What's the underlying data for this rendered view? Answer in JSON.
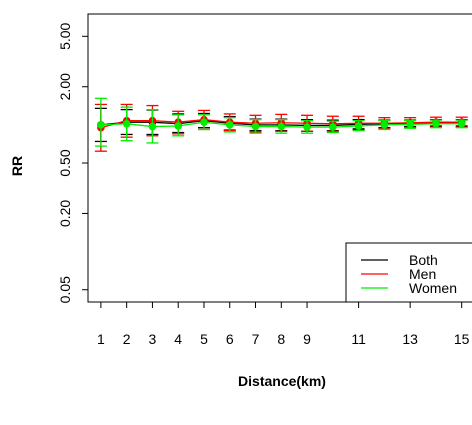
{
  "chart_data": {
    "type": "line",
    "title": "",
    "xlabel": "Distance(km)",
    "ylabel": "RR",
    "y_scale": "log",
    "ylim": [
      0.04,
      7.5
    ],
    "xlim": [
      0.5,
      15.4
    ],
    "x_ticks": [
      1,
      2,
      3,
      4,
      5,
      6,
      7,
      8,
      9,
      11,
      13,
      15
    ],
    "y_ticks": [
      0.05,
      0.2,
      0.5,
      2.0,
      5.0
    ],
    "y_tick_labels": [
      "0.05",
      "0.20",
      "0.50",
      "2.00",
      "5.00"
    ],
    "x": [
      1,
      2,
      3,
      4,
      5,
      6,
      7,
      8,
      9,
      10,
      11,
      12,
      13,
      14,
      15
    ],
    "legend_position": "bottom-right",
    "series": [
      {
        "name": "Both",
        "color": "#000000",
        "values": [
          1.0,
          1.05,
          1.05,
          1.02,
          1.08,
          1.03,
          1.0,
          1.0,
          0.99,
          0.99,
          1.01,
          1.02,
          1.03,
          1.04,
          1.04
        ],
        "lower": [
          0.74,
          0.84,
          0.84,
          0.87,
          0.95,
          0.91,
          0.9,
          0.9,
          0.89,
          0.9,
          0.93,
          0.95,
          0.97,
          0.98,
          0.98
        ],
        "upper": [
          1.35,
          1.32,
          1.31,
          1.22,
          1.23,
          1.16,
          1.11,
          1.11,
          1.1,
          1.09,
          1.1,
          1.09,
          1.09,
          1.1,
          1.1
        ]
      },
      {
        "name": "Men",
        "color": "#ff0000",
        "values": [
          0.95,
          1.08,
          1.08,
          1.05,
          1.1,
          1.05,
          1.03,
          1.04,
          1.03,
          1.02,
          1.03,
          1.03,
          1.04,
          1.05,
          1.05
        ],
        "lower": [
          0.62,
          0.8,
          0.82,
          0.85,
          0.92,
          0.9,
          0.88,
          0.89,
          0.89,
          0.89,
          0.91,
          0.93,
          0.95,
          0.96,
          0.96
        ],
        "upper": [
          1.45,
          1.45,
          1.42,
          1.28,
          1.3,
          1.22,
          1.19,
          1.21,
          1.19,
          1.17,
          1.17,
          1.14,
          1.14,
          1.15,
          1.15
        ]
      },
      {
        "name": "Women",
        "color": "#00ee00",
        "values": [
          1.0,
          1.02,
          0.97,
          0.98,
          1.05,
          1.0,
          0.97,
          0.97,
          0.96,
          0.96,
          0.98,
          1.0,
          1.01,
          1.02,
          1.02
        ],
        "lower": [
          0.68,
          0.75,
          0.72,
          0.82,
          0.92,
          0.88,
          0.86,
          0.86,
          0.86,
          0.87,
          0.9,
          0.92,
          0.94,
          0.95,
          0.95
        ],
        "upper": [
          1.62,
          1.38,
          1.32,
          1.2,
          1.2,
          1.14,
          1.1,
          1.1,
          1.08,
          1.07,
          1.08,
          1.08,
          1.08,
          1.09,
          1.09
        ]
      }
    ]
  }
}
